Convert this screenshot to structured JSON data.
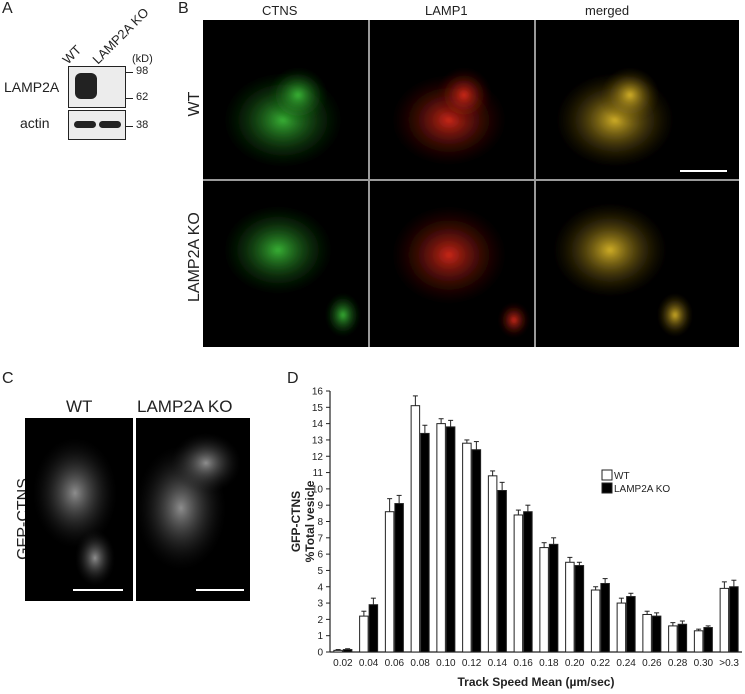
{
  "panelA": {
    "letter": "A",
    "lanes": [
      "WT",
      "LAMP2A KO"
    ],
    "unit": "(kD)",
    "proteins": [
      "LAMP2A",
      "actin"
    ],
    "markers": [
      "98",
      "62",
      "38"
    ]
  },
  "panelB": {
    "letter": "B",
    "columns": [
      "CTNS",
      "LAMP1",
      "merged"
    ],
    "rows": [
      "WT",
      "LAMP2A KO"
    ]
  },
  "panelC": {
    "letter": "C",
    "columns": [
      "WT",
      "LAMP2A KO"
    ],
    "ylabel": "GFP-CTNS"
  },
  "panelD": {
    "letter": "D"
  },
  "chart_data": {
    "type": "bar",
    "categories": [
      "0.02",
      "0.04",
      "0.06",
      "0.08",
      "0.10",
      "0.12",
      "0.14",
      "0.16",
      "0.18",
      "0.20",
      "0.22",
      "0.24",
      "0.26",
      "0.28",
      "0.30",
      ">0.3"
    ],
    "series": [
      {
        "name": "WT",
        "values": [
          0.1,
          2.2,
          8.6,
          15.1,
          14.0,
          12.8,
          10.8,
          8.4,
          6.4,
          5.5,
          3.8,
          3.0,
          2.3,
          1.6,
          1.3,
          3.9
        ],
        "errors": [
          0.05,
          0.3,
          0.8,
          0.6,
          0.3,
          0.2,
          0.3,
          0.3,
          0.3,
          0.3,
          0.2,
          0.3,
          0.2,
          0.2,
          0.1,
          0.4
        ],
        "color": "#ffffff"
      },
      {
        "name": "LAMP2A KO",
        "values": [
          0.15,
          2.9,
          9.1,
          13.4,
          13.8,
          12.4,
          9.9,
          8.6,
          6.6,
          5.3,
          4.2,
          3.4,
          2.2,
          1.7,
          1.5,
          4.0
        ],
        "errors": [
          0.05,
          0.4,
          0.5,
          0.5,
          0.4,
          0.5,
          0.5,
          0.4,
          0.4,
          0.2,
          0.3,
          0.2,
          0.2,
          0.2,
          0.1,
          0.4
        ],
        "color": "#000000"
      }
    ],
    "ylabel_line1": "GFP-CTNS",
    "ylabel_line2": "%Total vesicle",
    "xlabel": "Track Speed Mean (µm/sec)",
    "ylim": [
      0,
      16
    ],
    "yticks": [
      "0",
      "1",
      "2",
      "3",
      "4",
      "5",
      "6",
      "7",
      "8",
      "9",
      "10",
      "11",
      "12",
      "13",
      "14",
      "15",
      "16"
    ],
    "legend_position": "right"
  }
}
